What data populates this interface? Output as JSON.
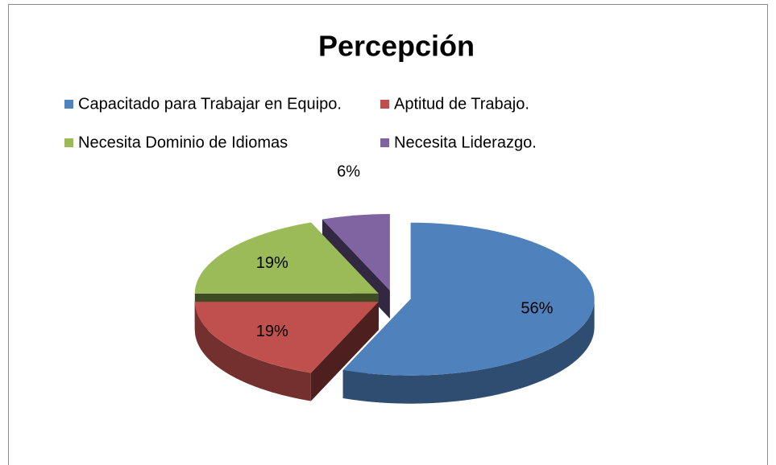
{
  "chart_data": {
    "type": "pie",
    "title": "Percepción",
    "categories": [
      "Capacitado para Trabajar en Equipo.",
      "Aptitud de Trabajo.",
      "Necesita Dominio de Idiomas",
      "Necesita Liderazgo."
    ],
    "values": [
      56,
      19,
      19,
      6
    ],
    "value_labels": [
      "56%",
      "19%",
      "19%",
      "6%"
    ],
    "colors": [
      "#4f81bd",
      "#c0504d",
      "#9bbb59",
      "#8064a2"
    ],
    "legend": "top"
  }
}
